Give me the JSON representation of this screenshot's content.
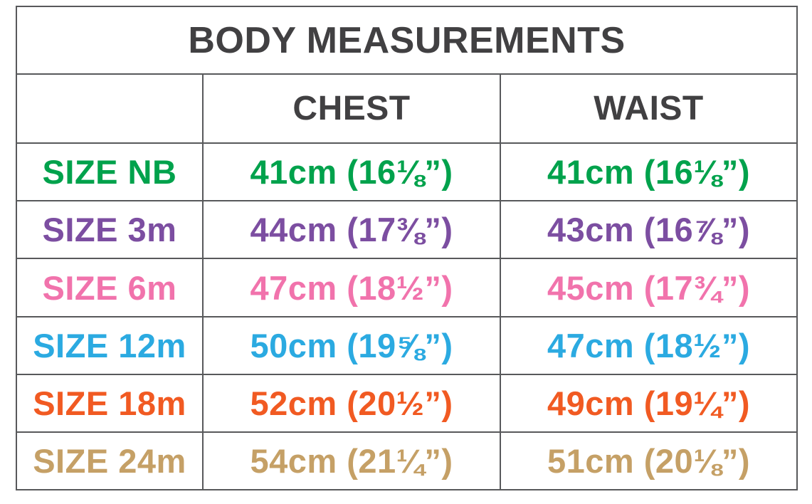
{
  "table": {
    "title": "BODY MEASUREMENTS",
    "columns": {
      "label": "",
      "chest": "CHEST",
      "waist": "WAIST"
    },
    "rows": [
      {
        "label": "SIZE NB",
        "chest": "41cm (16⅛”)",
        "waist": "41cm (16⅛”)",
        "color": "#00A24C"
      },
      {
        "label": "SIZE 3m",
        "chest": "44cm (17⅜”)",
        "waist": "43cm (16⅞”)",
        "color": "#7C4EA1"
      },
      {
        "label": "SIZE 6m",
        "chest": "47cm (18½”)",
        "waist": "45cm (17¾”)",
        "color": "#F173AC"
      },
      {
        "label": "SIZE 12m",
        "chest": "50cm (19⅝”)",
        "waist": "47cm (18½”)",
        "color": "#2BAAE1"
      },
      {
        "label": "SIZE 18m",
        "chest": "52cm (20½”)",
        "waist": "49cm (19¼”)",
        "color": "#F15A22"
      },
      {
        "label": "SIZE 24m",
        "chest": "54cm (21¼”)",
        "waist": "51cm (20⅛”)",
        "color": "#C5A066"
      }
    ],
    "colors": {
      "header_text": "#414042",
      "border": "#58595B",
      "background": "#FFFFFF"
    }
  },
  "chart_data": {
    "type": "table",
    "title": "BODY MEASUREMENTS",
    "columns": [
      "",
      "CHEST",
      "WAIST"
    ],
    "rows": [
      [
        "SIZE NB",
        "41cm (16⅛”)",
        "41cm (16⅛”)"
      ],
      [
        "SIZE 3m",
        "44cm (17⅜”)",
        "43cm (16⅞”)"
      ],
      [
        "SIZE 6m",
        "47cm (18½”)",
        "45cm (17¾”)"
      ],
      [
        "SIZE 12m",
        "50cm (19⅝”)",
        "47cm (18½”)"
      ],
      [
        "SIZE 18m",
        "52cm (20½”)",
        "49cm (19¼”)"
      ],
      [
        "SIZE 24m",
        "54cm (21¼”)",
        "51cm (20⅛”)"
      ]
    ],
    "numeric": {
      "sizes": [
        "NB",
        "3m",
        "6m",
        "12m",
        "18m",
        "24m"
      ],
      "chest_cm": [
        41,
        44,
        47,
        50,
        52,
        54
      ],
      "waist_cm": [
        41,
        43,
        45,
        47,
        49,
        51
      ],
      "chest_in": [
        16.125,
        17.375,
        18.5,
        19.625,
        20.5,
        21.25
      ],
      "waist_in": [
        16.125,
        16.875,
        17.75,
        18.5,
        19.25,
        20.125
      ]
    },
    "row_colors": [
      "#00A24C",
      "#7C4EA1",
      "#F173AC",
      "#2BAAE1",
      "#F15A22",
      "#C5A066"
    ],
    "legend_position": "none",
    "grid": true
  }
}
